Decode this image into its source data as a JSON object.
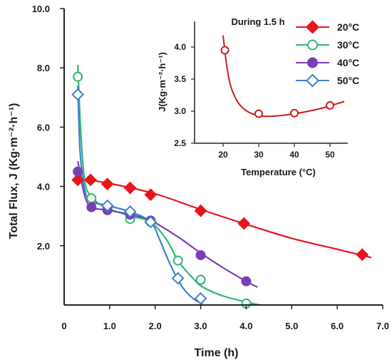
{
  "chart_data": [
    {
      "type": "line",
      "title": "",
      "xlabel": "Time (h)",
      "ylabel": "Total Flux, J (Kg·m⁻²·h⁻¹)",
      "xlim": [
        0,
        7
      ],
      "ylim": [
        0,
        10
      ],
      "x_ticks": [
        "1.0",
        "2.0",
        "3.0",
        "4.0",
        "5.0",
        "6.0",
        "7.0"
      ],
      "x_tick_values": [
        1,
        2,
        3,
        4,
        5,
        6,
        7
      ],
      "x_zero_label": "0",
      "y_ticks": [
        "2.0",
        "4.0",
        "6.0",
        "8.0",
        "10.0"
      ],
      "y_tick_values": [
        2,
        4,
        6,
        8,
        10
      ],
      "legend_position": "top-right",
      "series": [
        {
          "name": "20°C",
          "color": "#e8141c",
          "marker": "diamond-filled",
          "x": [
            0.3,
            0.58,
            0.95,
            1.45,
            1.9,
            3.0,
            3.95,
            6.55
          ],
          "y": [
            4.22,
            4.22,
            4.08,
            3.95,
            3.72,
            3.18,
            2.75,
            1.7
          ],
          "fit_x": [
            0.3,
            1.0,
            2.0,
            3.0,
            4.0,
            5.0,
            6.0,
            6.75
          ],
          "fit_y": [
            4.28,
            4.1,
            3.75,
            3.22,
            2.72,
            2.25,
            1.88,
            1.6
          ]
        },
        {
          "name": "30°C",
          "color": "#2eb872",
          "marker": "circle-open",
          "x": [
            0.3,
            0.6,
            0.95,
            1.45,
            1.9,
            2.5,
            3.0,
            4.0
          ],
          "y": [
            7.7,
            3.6,
            3.25,
            2.9,
            2.8,
            1.5,
            0.85,
            0.05
          ],
          "fit_x": [
            0.3,
            0.36,
            0.45,
            0.6,
            0.9,
            1.45,
            1.9,
            2.25,
            2.5,
            2.8,
            3.05,
            3.5,
            4.0,
            4.3
          ],
          "fit_y": [
            8.1,
            6.0,
            4.2,
            3.65,
            3.3,
            3.0,
            2.8,
            2.2,
            1.5,
            0.95,
            0.6,
            0.3,
            0.1,
            0.0
          ]
        },
        {
          "name": "40°C",
          "color": "#7b3fb5",
          "marker": "circle-filled",
          "x": [
            0.3,
            0.6,
            0.95,
            1.45,
            1.9,
            3.0,
            4.0
          ],
          "y": [
            4.5,
            3.3,
            3.2,
            3.05,
            2.85,
            1.68,
            0.8
          ],
          "fit_x": [
            0.3,
            0.45,
            0.6,
            0.95,
            1.45,
            1.9,
            2.5,
            3.0,
            3.5,
            4.0,
            4.25
          ],
          "fit_y": [
            4.85,
            3.7,
            3.3,
            3.2,
            3.05,
            2.85,
            2.3,
            1.75,
            1.25,
            0.8,
            0.6
          ]
        },
        {
          "name": "50°C",
          "color": "#3f7fd0",
          "marker": "diamond-open",
          "x": [
            0.3,
            0.95,
            1.45,
            1.9,
            2.5,
            3.0
          ],
          "y": [
            7.1,
            3.35,
            3.15,
            2.8,
            0.9,
            0.22
          ],
          "fit_x": [
            0.3,
            0.35,
            0.45,
            0.6,
            0.95,
            1.45,
            1.9,
            2.1,
            2.35,
            2.6,
            2.85,
            3.05
          ],
          "fit_y": [
            7.4,
            5.2,
            3.9,
            3.5,
            3.35,
            3.15,
            2.8,
            2.2,
            1.3,
            0.6,
            0.2,
            0.05
          ]
        }
      ]
    },
    {
      "type": "line",
      "title": "During 1.5 h",
      "xlabel": "Temperature (°C)",
      "ylabel": "J(Kg·m⁻²·h⁻¹)",
      "xlim": [
        12,
        55
      ],
      "ylim": [
        2.5,
        4.4
      ],
      "x_ticks": [
        "20",
        "30",
        "40",
        "50"
      ],
      "x_tick_values": [
        20,
        30,
        40,
        50
      ],
      "y_ticks": [
        "2.5",
        "3.0",
        "3.5",
        "4.0"
      ],
      "y_tick_values": [
        2.5,
        3.0,
        3.5,
        4.0
      ],
      "series": [
        {
          "color": "#c81e1e",
          "marker": "circle-open",
          "x": [
            20.5,
            30,
            40,
            50
          ],
          "y": [
            3.95,
            2.96,
            2.97,
            3.09
          ],
          "fit_x": [
            20.0,
            21.0,
            22.0,
            23.5,
            25.0,
            27.0,
            30.0,
            33.0,
            36.0,
            40.0,
            44.0,
            48.0,
            51.0,
            54.0
          ],
          "fit_y": [
            4.18,
            3.72,
            3.42,
            3.2,
            3.08,
            2.99,
            2.93,
            2.92,
            2.93,
            2.96,
            3.0,
            3.05,
            3.1,
            3.15
          ]
        }
      ]
    }
  ]
}
